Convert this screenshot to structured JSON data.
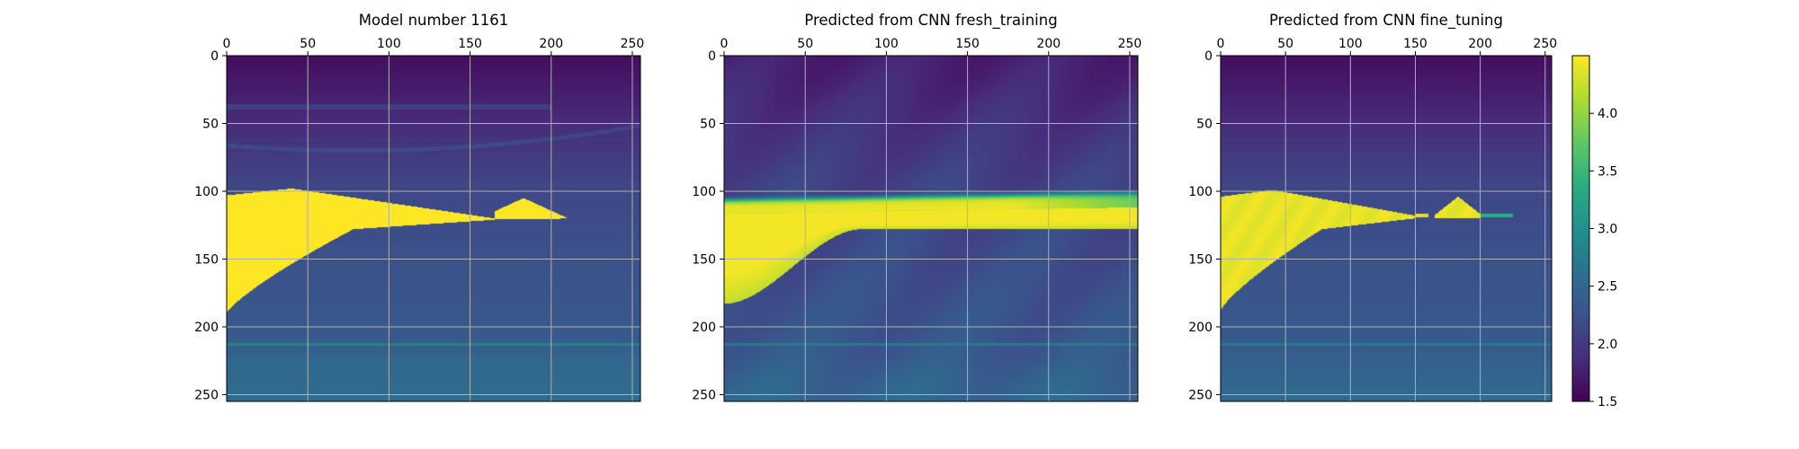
{
  "chart_data": [
    {
      "type": "heatmap",
      "title": "Model number 1161",
      "xlabel": "",
      "ylabel": "",
      "xlim": [
        0,
        255
      ],
      "ylim": [
        255,
        0
      ],
      "x_ticks": [
        "0",
        "50",
        "100",
        "150",
        "200",
        "250"
      ],
      "y_ticks": [
        "0",
        "50",
        "100",
        "150",
        "200",
        "250"
      ],
      "x_axis_position": "top",
      "grid": true,
      "colormap": "viridis",
      "value_range": [
        1.5,
        4.5
      ],
      "features": {
        "background_gradient": [
          {
            "depth": 0,
            "value": 1.6
          },
          {
            "depth": 100,
            "value": 2.15
          },
          {
            "depth": 212,
            "value": 2.35
          },
          {
            "depth": 225,
            "value": 2.5
          },
          {
            "depth": 255,
            "value": 2.55
          }
        ],
        "high_value_body": {
          "value": 4.5,
          "top_depth_range": [
            98,
            120
          ],
          "left_bottom_depth": 190,
          "right_extent_x": 215
        },
        "secondary_peak": {
          "x": 183,
          "depth": 105,
          "value": 4.5
        },
        "thin_layers": [
          {
            "depth": 213,
            "value": 2.8
          }
        ]
      }
    },
    {
      "type": "heatmap",
      "title": "Predicted from CNN fresh_training",
      "xlabel": "",
      "ylabel": "",
      "xlim": [
        0,
        255
      ],
      "ylim": [
        255,
        0
      ],
      "x_ticks": [
        "0",
        "50",
        "100",
        "150",
        "200",
        "250"
      ],
      "y_ticks": [
        "0",
        "50",
        "100",
        "150",
        "200",
        "250"
      ],
      "x_axis_position": "top",
      "grid": true,
      "colormap": "viridis",
      "value_range": [
        1.5,
        4.5
      ],
      "features": {
        "background_gradient": [
          {
            "depth": 0,
            "value": 1.75
          },
          {
            "depth": 100,
            "value": 2.1
          },
          {
            "depth": 212,
            "value": 2.3
          },
          {
            "depth": 255,
            "value": 2.5
          }
        ],
        "high_value_band": {
          "value": 4.4,
          "depth_range": [
            105,
            128
          ],
          "x_extent": [
            0,
            255
          ]
        },
        "left_bulge_bottom_depth": 183,
        "thin_layers": [
          {
            "depth": 213,
            "value": 2.7
          }
        ]
      }
    },
    {
      "type": "heatmap",
      "title": "Predicted from CNN fine_tuning",
      "xlabel": "",
      "ylabel": "",
      "xlim": [
        0,
        255
      ],
      "ylim": [
        255,
        0
      ],
      "x_ticks": [
        "0",
        "50",
        "100",
        "150",
        "200",
        "250"
      ],
      "y_ticks": [
        "0",
        "50",
        "100",
        "150",
        "200",
        "250"
      ],
      "x_axis_position": "top",
      "grid": true,
      "colormap": "viridis",
      "value_range": [
        1.5,
        4.5
      ],
      "features": {
        "background_gradient": [
          {
            "depth": 0,
            "value": 1.6
          },
          {
            "depth": 100,
            "value": 2.15
          },
          {
            "depth": 212,
            "value": 2.35
          },
          {
            "depth": 255,
            "value": 2.55
          }
        ],
        "high_value_body": {
          "value": 4.4,
          "top_depth_range": [
            98,
            118
          ],
          "left_bottom_depth": 188,
          "right_extent_x": 150
        },
        "secondary_peak": {
          "x": 183,
          "depth": 105,
          "value": 4.4
        },
        "thin_layers": [
          {
            "depth": 213,
            "value": 2.7
          }
        ]
      }
    }
  ],
  "colorbar": {
    "range": [
      1.5,
      4.5
    ],
    "colormap": "viridis",
    "ticks": [
      {
        "value": 1.5,
        "label": "1.5"
      },
      {
        "value": 2.0,
        "label": "2.0"
      },
      {
        "value": 2.5,
        "label": "2.5"
      },
      {
        "value": 3.0,
        "label": "3.0"
      },
      {
        "value": 3.5,
        "label": "3.5"
      },
      {
        "value": 4.0,
        "label": "4.0"
      }
    ]
  },
  "colors": {
    "viridis_stops": [
      "#440154",
      "#472d7b",
      "#3b528b",
      "#2c728e",
      "#21918c",
      "#28ae80",
      "#5ec962",
      "#addc30",
      "#fde725"
    ]
  }
}
